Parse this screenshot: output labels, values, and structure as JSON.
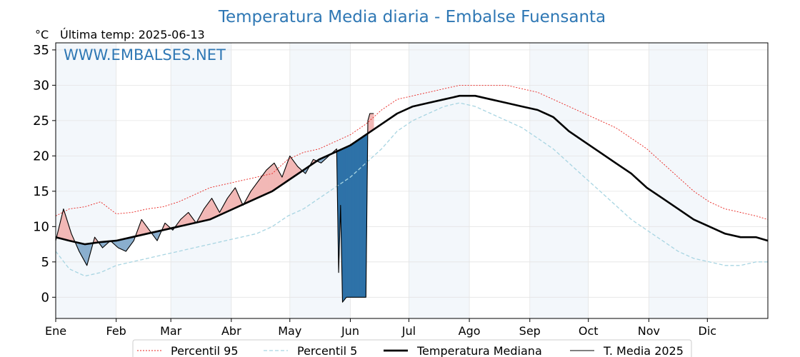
{
  "chart_data": {
    "type": "line",
    "title": "Temperatura Media diaria - Embalse Fuensanta",
    "unit": "°C",
    "subtitle": "Última temp: 2025-06-13",
    "watermark": "WWW.EMBALSES.NET",
    "ylim": [
      -3,
      36
    ],
    "yticks": [
      0,
      5,
      10,
      15,
      20,
      25,
      30,
      35
    ],
    "xlim": [
      1,
      366
    ],
    "months": [
      "Ene",
      "Feb",
      "Mar",
      "Abr",
      "May",
      "Jun",
      "Jul",
      "Ago",
      "Sep",
      "Oct",
      "Nov",
      "Dic"
    ],
    "month_start_days": [
      1,
      32,
      60,
      91,
      121,
      152,
      182,
      213,
      244,
      274,
      305,
      335
    ],
    "grid": true,
    "legend_position": "bottom",
    "series": [
      {
        "name": "Percentil 95",
        "color": "#e8221e",
        "style": "dotted",
        "x": [
          1,
          8,
          16,
          24,
          32,
          40,
          48,
          56,
          64,
          72,
          80,
          88,
          96,
          104,
          112,
          120,
          128,
          136,
          144,
          152,
          160,
          168,
          176,
          184,
          192,
          200,
          208,
          216,
          224,
          232,
          240,
          248,
          256,
          264,
          272,
          280,
          288,
          296,
          304,
          312,
          320,
          328,
          336,
          344,
          352,
          360,
          366
        ],
        "y": [
          11.5,
          12.5,
          12.8,
          13.5,
          11.8,
          12.0,
          12.5,
          12.8,
          13.5,
          14.5,
          15.5,
          16.0,
          16.5,
          17.0,
          17.5,
          19.5,
          20.5,
          21.0,
          22.0,
          23.0,
          24.5,
          26.5,
          28.0,
          28.5,
          29.0,
          29.5,
          30.0,
          30.0,
          30.0,
          30.0,
          29.5,
          29.0,
          28.0,
          27.0,
          26.0,
          25.0,
          24.0,
          22.5,
          21.0,
          19.0,
          17.0,
          15.0,
          13.5,
          12.5,
          12.0,
          11.5,
          11.0
        ]
      },
      {
        "name": "Percentil 5",
        "color": "#a8d5e2",
        "style": "dashed",
        "x": [
          1,
          8,
          16,
          24,
          32,
          40,
          48,
          56,
          64,
          72,
          80,
          88,
          96,
          104,
          112,
          120,
          128,
          136,
          144,
          152,
          160,
          168,
          176,
          184,
          192,
          200,
          208,
          216,
          224,
          232,
          240,
          248,
          256,
          264,
          272,
          280,
          288,
          296,
          304,
          312,
          320,
          328,
          336,
          344,
          352,
          360,
          366
        ],
        "y": [
          6.5,
          4.0,
          3.0,
          3.5,
          4.5,
          5.0,
          5.5,
          6.0,
          6.5,
          7.0,
          7.5,
          8.0,
          8.5,
          9.0,
          10.0,
          11.5,
          12.5,
          14.0,
          15.5,
          17.0,
          19.0,
          21.0,
          23.5,
          25.0,
          26.0,
          27.0,
          27.5,
          27.0,
          26.0,
          25.0,
          24.0,
          22.5,
          21.0,
          19.0,
          17.0,
          15.0,
          13.0,
          11.0,
          9.5,
          8.0,
          6.5,
          5.5,
          5.0,
          4.5,
          4.5,
          5.0,
          5.0
        ]
      },
      {
        "name": "Temperatura Mediana",
        "color": "#000000",
        "style": "solid-thick",
        "x": [
          1,
          8,
          16,
          24,
          32,
          40,
          48,
          56,
          64,
          72,
          80,
          88,
          96,
          104,
          112,
          120,
          128,
          136,
          144,
          152,
          160,
          168,
          176,
          184,
          192,
          200,
          208,
          216,
          224,
          232,
          240,
          248,
          256,
          264,
          272,
          280,
          288,
          296,
          304,
          312,
          320,
          328,
          336,
          344,
          352,
          360,
          366
        ],
        "y": [
          8.5,
          8.0,
          7.5,
          7.8,
          8.0,
          8.5,
          9.0,
          9.5,
          10.0,
          10.5,
          11.0,
          12.0,
          13.0,
          14.0,
          15.0,
          16.5,
          18.0,
          19.5,
          20.5,
          21.5,
          23.0,
          24.5,
          26.0,
          27.0,
          27.5,
          28.0,
          28.5,
          28.5,
          28.0,
          27.5,
          27.0,
          26.5,
          25.5,
          23.5,
          22.0,
          20.5,
          19.0,
          17.5,
          15.5,
          14.0,
          12.5,
          11.0,
          10.0,
          9.0,
          8.5,
          8.5,
          8.0
        ]
      },
      {
        "name": "T. Media 2025",
        "color": "#000000",
        "style": "solid-thin",
        "x": [
          1,
          5,
          9,
          13,
          17,
          21,
          25,
          29,
          33,
          37,
          41,
          45,
          49,
          53,
          57,
          61,
          65,
          69,
          73,
          77,
          81,
          85,
          89,
          93,
          97,
          101,
          105,
          109,
          113,
          117,
          121,
          125,
          129,
          133,
          137,
          141,
          145,
          146,
          147,
          148,
          150,
          152,
          155,
          158,
          160,
          161,
          162,
          164
        ],
        "y": [
          8.0,
          12.5,
          9.0,
          6.5,
          4.5,
          8.5,
          7.0,
          8.0,
          7.0,
          6.5,
          8.0,
          11.0,
          9.5,
          8.0,
          10.5,
          9.5,
          11.0,
          12.0,
          10.5,
          12.5,
          14.0,
          12.0,
          14.0,
          15.5,
          13.0,
          15.0,
          16.5,
          18.0,
          19.0,
          17.0,
          20.0,
          18.5,
          17.5,
          19.5,
          19.0,
          20.0,
          21.0,
          3.5,
          13.0,
          -0.7,
          0.0,
          0.0,
          0.0,
          0.0,
          0.0,
          25.0,
          26.0,
          26.0
        ]
      }
    ]
  }
}
